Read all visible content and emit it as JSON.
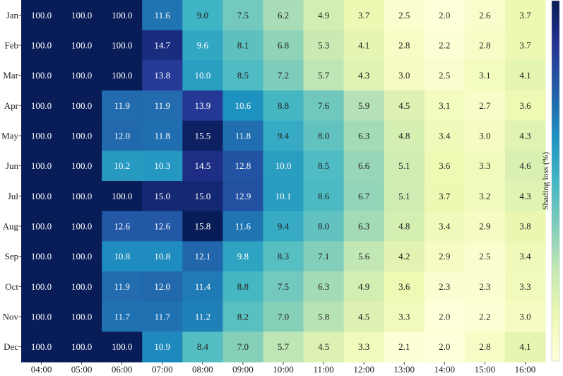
{
  "chart_data": {
    "type": "heatmap",
    "title": "",
    "xlabel": "",
    "ylabel": "",
    "x_categories": [
      "04:00",
      "05:00",
      "06:00",
      "07:00",
      "08:00",
      "09:00",
      "10:00",
      "11:00",
      "12:00",
      "13:00",
      "14:00",
      "15:00",
      "16:00"
    ],
    "y_categories": [
      "Jan",
      "Feb",
      "Mar",
      "Apr",
      "May",
      "Jun",
      "Jul",
      "Aug",
      "Sep",
      "Oct",
      "Nov",
      "Dec"
    ],
    "values": [
      [
        100.0,
        100.0,
        100.0,
        11.6,
        9.0,
        7.5,
        6.2,
        4.9,
        3.7,
        2.5,
        2.0,
        2.6,
        3.7
      ],
      [
        100.0,
        100.0,
        100.0,
        14.7,
        9.6,
        8.1,
        6.8,
        5.3,
        4.1,
        2.8,
        2.2,
        2.8,
        3.7
      ],
      [
        100.0,
        100.0,
        100.0,
        13.8,
        10.0,
        8.5,
        7.2,
        5.7,
        4.3,
        3.0,
        2.5,
        3.1,
        4.1
      ],
      [
        100.0,
        100.0,
        11.9,
        11.9,
        13.9,
        10.6,
        8.8,
        7.6,
        5.9,
        4.5,
        3.1,
        2.7,
        3.6
      ],
      [
        100.0,
        100.0,
        12.0,
        11.8,
        15.5,
        11.8,
        9.4,
        8.0,
        6.3,
        4.8,
        3.4,
        3.0,
        4.3
      ],
      [
        100.0,
        100.0,
        10.2,
        10.3,
        14.5,
        12.8,
        10.0,
        8.5,
        6.6,
        5.1,
        3.6,
        3.3,
        4.6
      ],
      [
        100.0,
        100.0,
        100.0,
        15.0,
        15.0,
        12.9,
        10.1,
        8.6,
        6.7,
        5.1,
        3.7,
        3.2,
        4.3
      ],
      [
        100.0,
        100.0,
        12.6,
        12.6,
        15.8,
        11.6,
        9.4,
        8.0,
        6.3,
        4.8,
        3.4,
        2.9,
        3.8
      ],
      [
        100.0,
        100.0,
        10.8,
        10.8,
        12.1,
        9.8,
        8.3,
        7.1,
        5.6,
        4.2,
        2.9,
        2.5,
        3.4
      ],
      [
        100.0,
        100.0,
        11.9,
        12.0,
        11.4,
        8.8,
        7.5,
        6.3,
        4.9,
        3.6,
        2.3,
        2.3,
        3.3
      ],
      [
        100.0,
        100.0,
        11.7,
        11.7,
        11.2,
        8.2,
        7.0,
        5.8,
        4.5,
        3.3,
        2.0,
        2.2,
        3.0
      ],
      [
        100.0,
        100.0,
        100.0,
        10.9,
        8.4,
        7.0,
        5.7,
        4.5,
        3.3,
        2.1,
        2.0,
        2.8,
        4.1
      ]
    ],
    "colorbar": {
      "label": "Shading loss (%)",
      "colormap": "YlGnBu",
      "vmin": 2.0,
      "vmax": 15.8,
      "clipped_color": "#081d58"
    }
  }
}
